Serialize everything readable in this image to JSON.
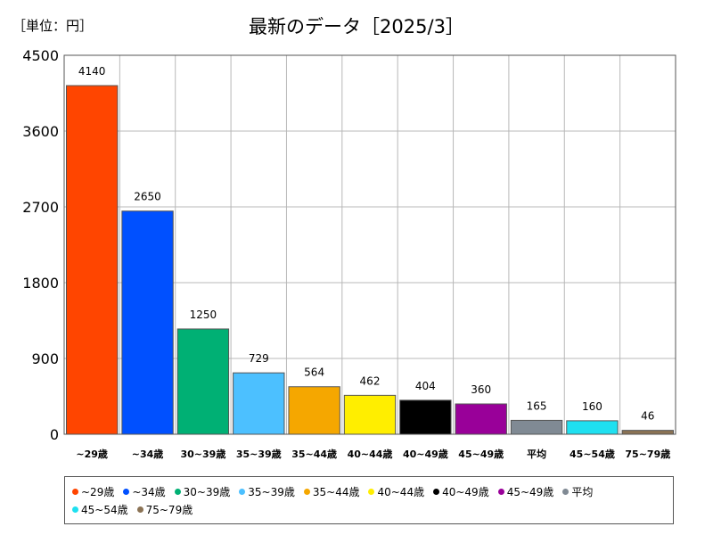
{
  "header": {
    "unit_label": "［単位：円］",
    "title": "最新のデータ［2025/3］"
  },
  "chart_data": {
    "type": "bar",
    "title": "最新のデータ［2025/3］",
    "unit": "［単位：円］",
    "xlabel": "",
    "ylabel": "",
    "ylim": [
      0,
      4500
    ],
    "yticks": [
      0,
      900,
      1800,
      2700,
      3600,
      4500
    ],
    "grid": true,
    "legend_position": "bottom",
    "categories": [
      "~29歳",
      "~34歳",
      "30~39歳",
      "35~39歳",
      "35~44歳",
      "40~44歳",
      "40~49歳",
      "45~49歳",
      "平均",
      "45~54歳",
      "75~79歳"
    ],
    "values": [
      4140,
      2650,
      1250,
      729,
      564,
      462,
      404,
      360,
      165,
      160,
      46
    ],
    "colors": [
      "#ff4500",
      "#0050ff",
      "#00b074",
      "#4cc0ff",
      "#f5a700",
      "#ffee00",
      "#000000",
      "#990099",
      "#808a94",
      "#1fe0f0",
      "#8b7355"
    ]
  }
}
